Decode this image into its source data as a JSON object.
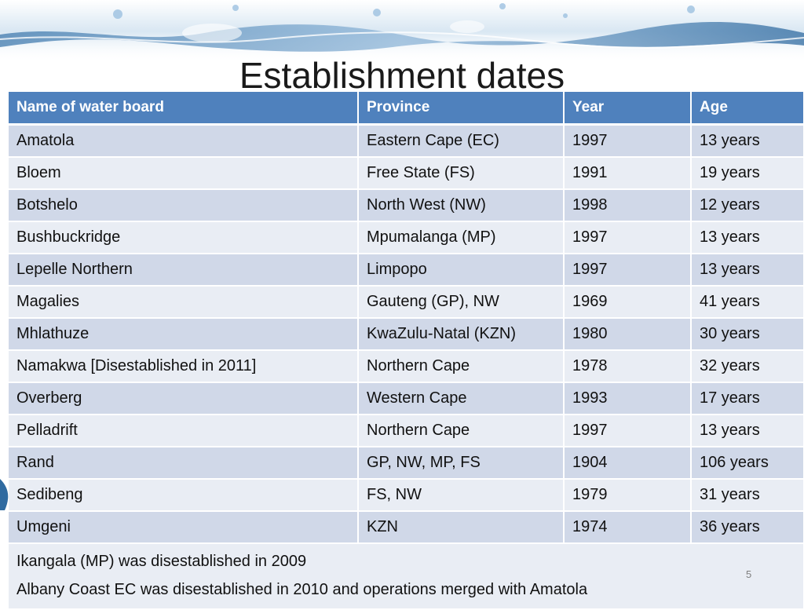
{
  "slide": {
    "title": "Establishment dates",
    "number": "5"
  },
  "table": {
    "headers": [
      "Name of water board",
      "Province",
      "Year",
      "Age"
    ],
    "rows": [
      [
        "Amatola",
        "Eastern Cape (EC)",
        "1997",
        "13 years"
      ],
      [
        "Bloem",
        "Free State (FS)",
        "1991",
        "19 years"
      ],
      [
        "Botshelo",
        "North West (NW)",
        "1998",
        "12 years"
      ],
      [
        "Bushbuckridge",
        "Mpumalanga (MP)",
        "1997",
        "13 years"
      ],
      [
        "Lepelle Northern",
        "Limpopo",
        "1997",
        "13 years"
      ],
      [
        "Magalies",
        "Gauteng (GP), NW",
        "1969",
        "41 years"
      ],
      [
        "Mhlathuze",
        "KwaZulu-Natal (KZN)",
        "1980",
        "30 years"
      ],
      [
        "Namakwa  [Disestablished in 2011]",
        "Northern Cape",
        "1978",
        "32 years"
      ],
      [
        "Overberg",
        "Western Cape",
        "1993",
        "17 years"
      ],
      [
        "Pelladrift",
        "Northern Cape",
        "1997",
        "13 years"
      ],
      [
        "Rand",
        "GP, NW, MP, FS",
        "1904",
        "106 years"
      ],
      [
        "Sedibeng",
        "FS, NW",
        "1979",
        "31 years"
      ],
      [
        "Umgeni",
        "KZN",
        "1974",
        "36 years"
      ]
    ],
    "notes": [
      "Ikangala (MP) was disestablished in 2009",
      "Albany Coast EC  was disestablished in 2010  and operations merged with Amatola"
    ]
  },
  "colors": {
    "header_bg": "#4f81bd",
    "row_band_dark": "#d0d8e8",
    "row_band_light": "#e9edf4",
    "water_accent": "#6f9fc8"
  },
  "decorations": {
    "header_image": "water-splash-banner",
    "side_image": "water-splash-edge"
  }
}
